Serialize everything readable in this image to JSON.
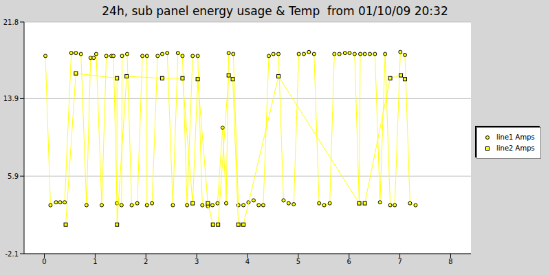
{
  "chart_data": {
    "type": "line",
    "title": "24h, sub panel energy usage & Temp  from 01/10/09 20:32",
    "xlim": [
      -0.4,
      8.4
    ],
    "xticks": [
      0,
      1,
      2,
      3,
      4,
      5,
      6,
      7,
      8
    ],
    "ylim": [
      -2.1,
      21.8
    ],
    "yticks": [
      -2.1,
      5.9,
      13.9,
      21.8
    ],
    "grid": true,
    "legend": "right",
    "series": [
      {
        "name": "line1 Amps",
        "color": "#ffff00",
        "marker": "circle",
        "x": [
          0.02,
          0.12,
          0.23,
          0.31,
          0.4,
          0.53,
          0.62,
          0.72,
          0.83,
          0.91,
          0.97,
          1.02,
          1.13,
          1.22,
          1.32,
          1.36,
          1.43,
          1.52,
          1.53,
          1.63,
          1.72,
          1.83,
          1.93,
          2.02,
          2.02,
          2.12,
          2.23,
          2.32,
          2.42,
          2.53,
          2.63,
          2.72,
          2.81,
          2.92,
          3.02,
          3.11,
          3.22,
          3.31,
          3.41,
          3.51,
          3.58,
          3.63,
          3.72,
          3.82,
          3.92,
          4.02,
          4.12,
          4.22,
          4.31,
          4.42,
          4.51,
          4.61,
          4.71,
          4.81,
          4.91,
          5.01,
          5.11,
          5.21,
          5.31,
          5.41,
          5.51,
          5.62,
          5.71,
          5.81,
          5.92,
          6.01,
          6.11,
          6.2,
          6.22,
          6.31,
          6.41,
          6.51,
          6.61,
          6.71,
          6.81,
          6.9,
          7.01,
          7.1,
          7.2,
          7.31
        ],
        "values": [
          18.3,
          2.9,
          3.2,
          3.2,
          3.2,
          18.6,
          18.6,
          18.5,
          2.9,
          18.1,
          18.1,
          18.5,
          2.9,
          18.3,
          18.3,
          18.3,
          3.1,
          2.9,
          18.3,
          18.5,
          2.9,
          3.1,
          18.3,
          18.3,
          2.9,
          3.1,
          18.3,
          18.5,
          18.6,
          2.9,
          18.6,
          18.3,
          2.9,
          18.3,
          18.3,
          2.9,
          2.8,
          2.9,
          3.1,
          10.9,
          3.1,
          18.6,
          18.5,
          2.9,
          2.9,
          3.2,
          3.4,
          2.9,
          2.9,
          18.3,
          18.5,
          18.5,
          3.4,
          3.1,
          3.0,
          18.5,
          18.5,
          18.7,
          18.5,
          3.1,
          2.9,
          3.1,
          18.5,
          18.5,
          18.6,
          18.6,
          18.5,
          3.1,
          18.5,
          18.5,
          18.5,
          18.5,
          3.2,
          18.5,
          2.9,
          2.9,
          18.7,
          18.4,
          3.1,
          2.9
        ]
      },
      {
        "name": "line2 Amps",
        "color": "#ffff00",
        "marker": "square",
        "x": [
          0.42,
          0.62,
          1.43,
          1.43,
          1.62,
          2.32,
          2.72,
          2.92,
          3.02,
          3.22,
          3.32,
          3.42,
          3.63,
          3.71,
          3.82,
          3.92,
          4.61,
          6.2,
          6.31,
          6.81,
          7.02,
          7.1
        ],
        "values": [
          0.9,
          16.5,
          16.0,
          0.9,
          16.2,
          16.0,
          16.0,
          3.1,
          15.9,
          3.1,
          0.9,
          0.9,
          16.3,
          15.9,
          0.9,
          0.9,
          16.2,
          3.1,
          3.1,
          16.0,
          16.3,
          15.9
        ]
      }
    ]
  }
}
